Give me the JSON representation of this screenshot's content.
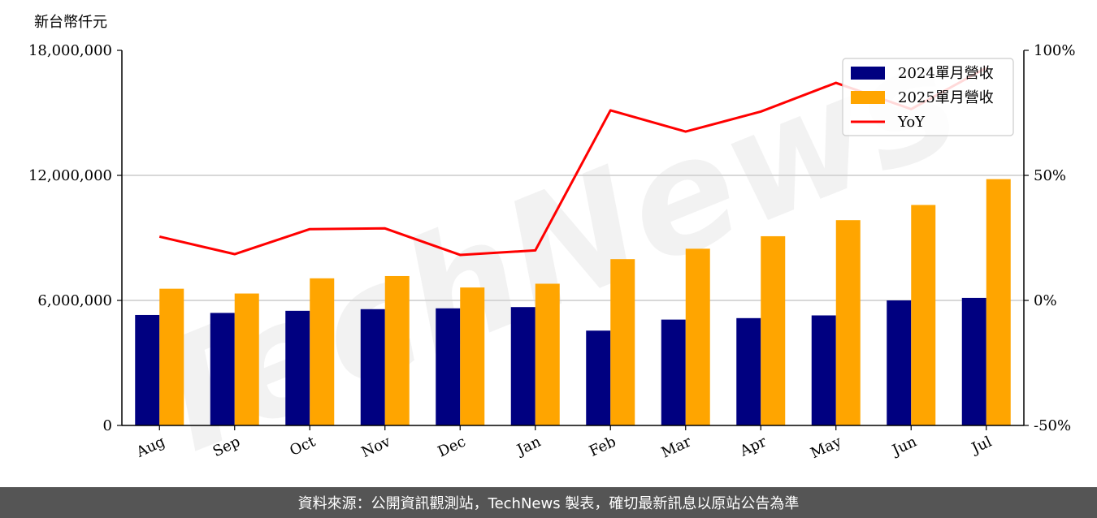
{
  "chart_data": {
    "type": "bar",
    "unit_label": "新台幣仟元",
    "categories": [
      "Aug",
      "Sep",
      "Oct",
      "Nov",
      "Dec",
      "Jan",
      "Feb",
      "Mar",
      "Apr",
      "May",
      "Jun",
      "Jul"
    ],
    "series": [
      {
        "name": "2024單月營收",
        "type": "bar",
        "axis": "left",
        "color": "#000080",
        "values": [
          5300000,
          5400000,
          5500000,
          5580000,
          5620000,
          5680000,
          4550000,
          5080000,
          5150000,
          5280000,
          6000000,
          6120000
        ]
      },
      {
        "name": "2025單月營收",
        "type": "bar",
        "axis": "left",
        "color": "#FFA500",
        "values": [
          6560000,
          6330000,
          7060000,
          7170000,
          6620000,
          6800000,
          7980000,
          8480000,
          9080000,
          9850000,
          10580000,
          11820000
        ]
      },
      {
        "name": "YoY",
        "type": "line",
        "axis": "right",
        "color": "#FF0000",
        "values": [
          25.5,
          18.5,
          28.5,
          28.8,
          18.2,
          20.0,
          76.0,
          67.5,
          75.5,
          87.0,
          76.5,
          93.0
        ]
      }
    ],
    "y_left": {
      "lim": [
        0,
        18000000
      ],
      "ticks": [
        0,
        6000000,
        12000000,
        18000000
      ],
      "tick_labels": [
        "0",
        "6,000,000",
        "12,000,000",
        "18,000,000"
      ]
    },
    "y_right": {
      "lim": [
        -50,
        100
      ],
      "ticks": [
        -50,
        0,
        50,
        100
      ],
      "tick_labels": [
        "-50%",
        "0%",
        "50%",
        "100%"
      ]
    },
    "grid": "horizontal",
    "legend_position": "top-right",
    "watermark": "TechNews"
  },
  "footer": {
    "source_text": "資料來源：公開資訊觀測站，TechNews 製表，確切最新訊息以原站公告為準"
  }
}
